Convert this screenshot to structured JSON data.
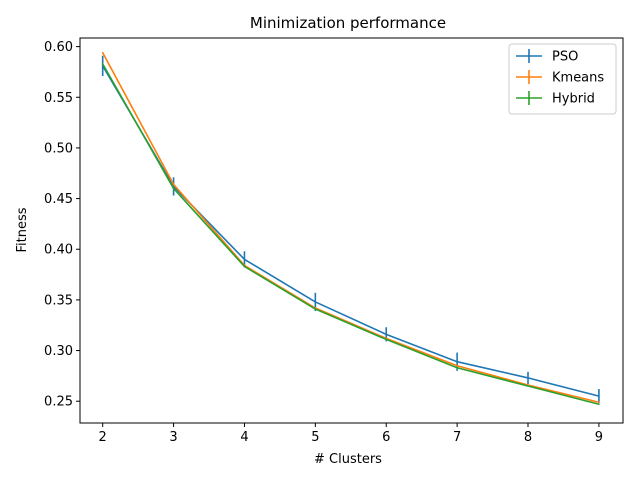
{
  "chart_data": {
    "type": "line",
    "title": "Minimization performance",
    "xlabel": "# Clusters",
    "ylabel": "Fitness",
    "x": [
      2,
      3,
      4,
      5,
      6,
      7,
      8,
      9
    ],
    "xlim": [
      1.68,
      9.34
    ],
    "ylim": [
      0.2285,
      0.6085
    ],
    "xticks": [
      2,
      3,
      4,
      5,
      6,
      7,
      8,
      9
    ],
    "yticks": [
      0.25,
      0.3,
      0.35,
      0.4,
      0.45,
      0.5,
      0.55,
      0.6
    ],
    "grid": false,
    "legend_position": "top-right",
    "series": [
      {
        "name": "PSO",
        "color": "#1f77b4",
        "values": [
          0.581,
          0.462,
          0.39,
          0.348,
          0.316,
          0.289,
          0.273,
          0.255
        ],
        "errors": [
          0.01,
          0.009,
          0.008,
          0.009,
          0.007,
          0.009,
          0.006,
          0.007
        ]
      },
      {
        "name": "Kmeans",
        "color": "#ff7f0e",
        "values": [
          0.594,
          0.464,
          0.384,
          0.342,
          0.312,
          0.285,
          0.266,
          0.249
        ],
        "errors": [
          0.0,
          0.0,
          0.0,
          0.0,
          0.0,
          0.0,
          0.0,
          0.0
        ]
      },
      {
        "name": "Hybrid",
        "color": "#2ca02c",
        "values": [
          0.583,
          0.46,
          0.383,
          0.341,
          0.311,
          0.283,
          0.265,
          0.247
        ],
        "errors": [
          0.0,
          0.0,
          0.0,
          0.0,
          0.0,
          0.0,
          0.0,
          0.0
        ]
      }
    ]
  }
}
